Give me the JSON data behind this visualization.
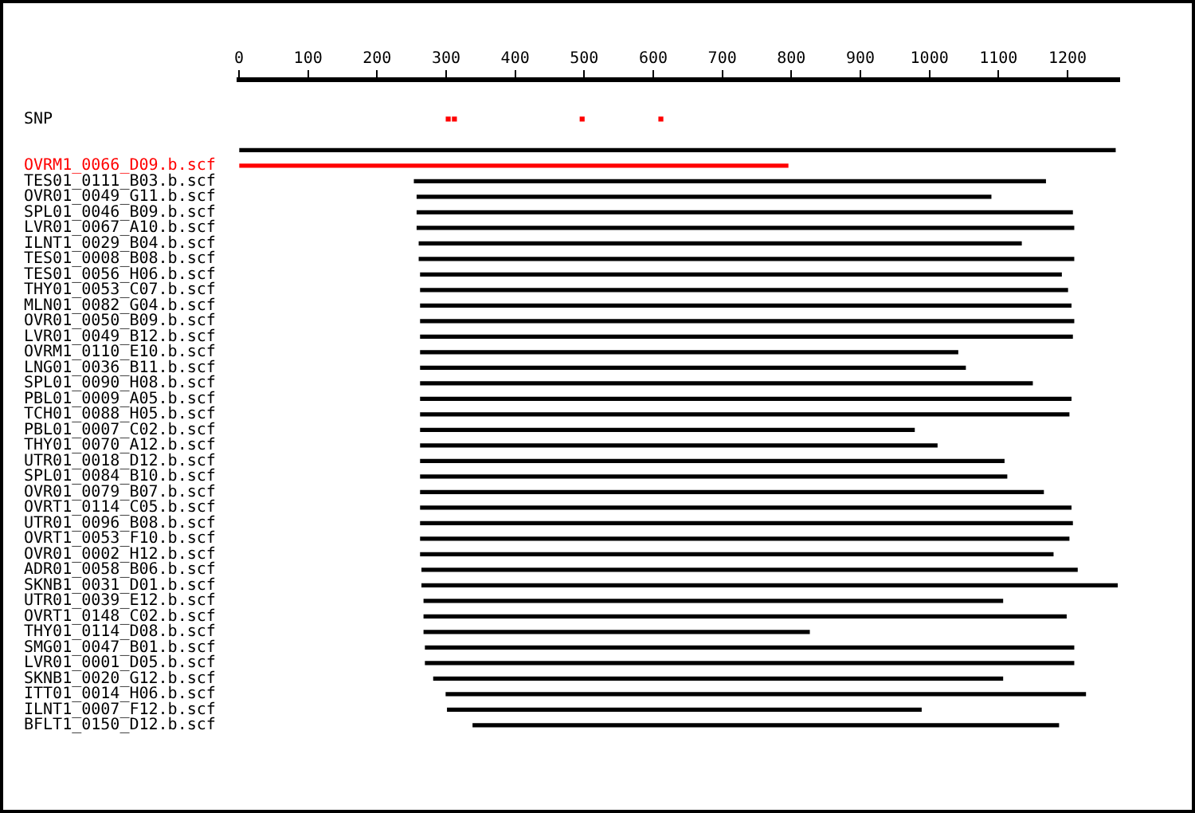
{
  "chart_data": {
    "type": "bar",
    "orientation": "horizontal",
    "categories": [
      "SNP",
      null,
      null,
      "OVRM1_0066_D09.b.scf",
      "TES01_0111_B03.b.scf",
      "OVR01_0049_G11.b.scf",
      "SPL01_0046_B09.b.scf",
      "LVR01_0067_A10.b.scf",
      "ILNT1_0029_B04.b.scf",
      "TES01_0008_B08.b.scf",
      "TES01_0056_H06.b.scf",
      "THY01_0053_C07.b.scf",
      "MLN01_0082_G04.b.scf",
      "OVR01_0050_B09.b.scf",
      "LVR01_0049_B12.b.scf",
      "OVRM1_0110_E10.b.scf",
      "LNG01_0036_B11.b.scf",
      "SPL01_0090_H08.b.scf",
      "PBL01_0009_A05.b.scf",
      "TCH01_0088_H05.b.scf",
      "PBL01_0007_C02.b.scf",
      "THY01_0070_A12.b.scf",
      "UTR01_0018_D12.b.scf",
      "SPL01_0084_B10.b.scf",
      "OVR01_0079_B07.b.scf",
      "OVRT1_0114_C05.b.scf",
      "UTR01_0096_B08.b.scf",
      "OVRT1_0053_F10.b.scf",
      "OVR01_0002_H12.b.scf",
      "ADR01_0058_B06.b.scf",
      "SKNB1_0031_D01.b.scf",
      "UTR01_0039_E12.b.scf",
      "OVRT1_0148_C02.b.scf",
      "THY01_0114_D08.b.scf",
      "SMG01_0047_B01.b.scf",
      "LVR01_0001_D05.b.scf",
      "SKNB1_0020_G12.b.scf",
      "ITT01_0014_H06.b.scf",
      "ILNT1_0007_F12.b.scf",
      "BFLT1_0150_D12.b.scf"
    ],
    "series": [
      {
        "type": "bar",
        "values": [
          null,
          null,
          1269,
          795,
          914,
          831,
          949,
          951,
          872,
          948,
          928,
          937,
          942,
          946,
          944,
          778,
          789,
          886,
          942,
          939,
          715,
          748,
          845,
          849,
          902,
          942,
          944,
          939,
          916,
          949,
          1007,
          838,
          930,
          558,
          939,
          939,
          824,
          926,
          686,
          848
        ],
        "base": [
          null,
          null,
          0,
          0,
          254,
          258,
          258,
          258,
          261,
          261,
          263,
          263,
          263,
          263,
          263,
          263,
          263,
          263,
          263,
          263,
          263,
          263,
          263,
          263,
          263,
          263,
          263,
          263,
          263,
          265,
          265,
          268,
          268,
          268,
          270,
          270,
          282,
          300,
          302,
          339
        ],
        "colors": [
          null,
          null,
          "#000000",
          "#ff0000",
          "#000000",
          "#000000",
          "#000000",
          "#000000",
          "#000000",
          "#000000",
          "#000000",
          "#000000",
          "#000000",
          "#000000",
          "#000000",
          "#000000",
          "#000000",
          "#000000",
          "#000000",
          "#000000",
          "#000000",
          "#000000",
          "#000000",
          "#000000",
          "#000000",
          "#000000",
          "#000000",
          "#000000",
          "#000000",
          "#000000",
          "#000000",
          "#000000",
          "#000000",
          "#000000",
          "#000000",
          "#000000",
          "#000000",
          "#000000",
          "#000000",
          "#000000"
        ]
      },
      {
        "type": "scatter",
        "x": [
          "SNP",
          "SNP",
          "SNP",
          "SNP"
        ],
        "values": [
          303,
          312,
          497,
          611
        ],
        "color": "#ff0000",
        "marker": "square"
      }
    ],
    "xlim": [
      0,
      1275
    ],
    "xticks": [
      0,
      100,
      200,
      300,
      400,
      500,
      600,
      700,
      800,
      900,
      1000,
      1100,
      1200
    ]
  }
}
